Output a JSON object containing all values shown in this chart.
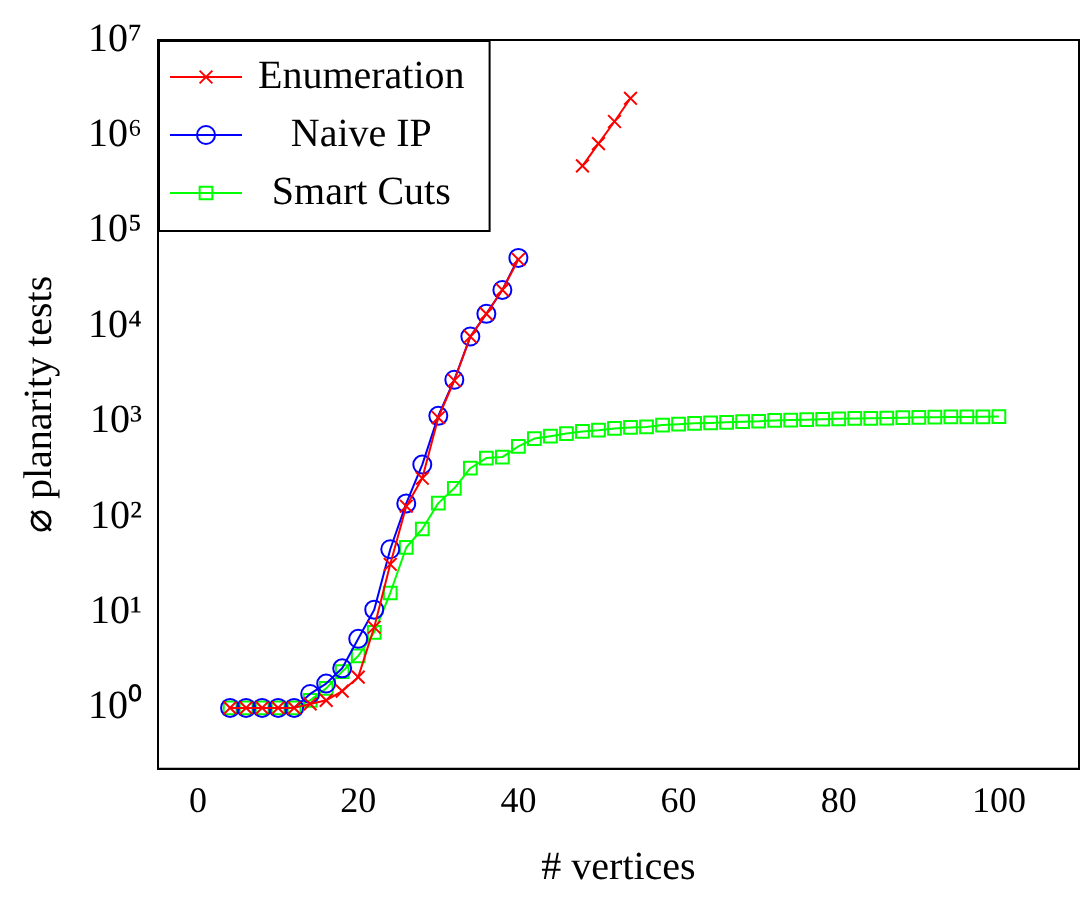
{
  "chart_data": {
    "type": "line",
    "xlabel": "# vertices",
    "ylabel": "⌀ planarity tests",
    "log": "y",
    "grid": false,
    "legend": "top left",
    "line_style": "solid",
    "xlim": [
      -5,
      110
    ],
    "xticks": [
      0,
      20,
      40,
      60,
      80,
      100
    ],
    "ylim": [
      0.23,
      10000000
    ],
    "yticks": [
      {
        "value": 1,
        "label": "10⁰"
      },
      {
        "value": 10,
        "label": "10¹"
      },
      {
        "value": 100,
        "label": "10²"
      },
      {
        "value": 1000,
        "label": "10³"
      },
      {
        "value": 10000,
        "label": "10⁴"
      },
      {
        "value": 100000,
        "label": "10⁵"
      },
      {
        "value": 1000000,
        "label": "10⁶"
      },
      {
        "value": 10000000,
        "label": "10⁷"
      }
    ],
    "series": [
      {
        "name": "Enumeration",
        "color": "#ff0000",
        "marker": "cross",
        "x": [
          4,
          6,
          8,
          10,
          12,
          14,
          16,
          18,
          20,
          22,
          24,
          26,
          28,
          30,
          32,
          34,
          36,
          38,
          40,
          42,
          44,
          46,
          48,
          50,
          52,
          54
        ],
        "values": [
          1,
          1,
          1,
          1,
          1,
          1.1,
          1.2,
          1.5,
          2.1,
          7,
          32,
          130,
          255,
          1100,
          2700,
          7800,
          13500,
          24000,
          50000,
          null,
          null,
          null,
          480000,
          820000,
          1400000,
          2450000
        ]
      },
      {
        "name": "Naive IP",
        "color": "#0000ff",
        "marker": "circle",
        "x": [
          4,
          6,
          8,
          10,
          12,
          14,
          16,
          18,
          20,
          22,
          24,
          26,
          28,
          30,
          32,
          34,
          36,
          38,
          40
        ],
        "values": [
          1,
          1,
          1,
          1,
          1,
          1.4,
          1.8,
          2.6,
          5.3,
          10.7,
          46,
          139,
          355,
          1150,
          2750,
          7800,
          13500,
          24000,
          52000
        ]
      },
      {
        "name": "Smart Cuts",
        "color": "#00ff00",
        "marker": "square",
        "x": [
          4,
          6,
          8,
          10,
          12,
          14,
          16,
          18,
          20,
          22,
          24,
          26,
          28,
          30,
          32,
          34,
          36,
          38,
          40,
          42,
          44,
          46,
          48,
          50,
          52,
          54,
          56,
          58,
          60,
          62,
          64,
          66,
          68,
          70,
          72,
          74,
          76,
          78,
          80,
          82,
          84,
          86,
          88,
          90,
          92,
          94,
          96,
          98,
          100
        ],
        "values": [
          1,
          1,
          1,
          1,
          1,
          1.2,
          1.6,
          2.4,
          3.5,
          6.2,
          16,
          48,
          75,
          140,
          200,
          325,
          415,
          425,
          550,
          665,
          705,
          750,
          790,
          815,
          850,
          870,
          880,
          920,
          940,
          960,
          970,
          985,
          1000,
          1010,
          1030,
          1040,
          1050,
          1060,
          1070,
          1080,
          1085,
          1090,
          1100,
          1110,
          1115,
          1120,
          1120,
          1125,
          1130
        ]
      }
    ]
  }
}
